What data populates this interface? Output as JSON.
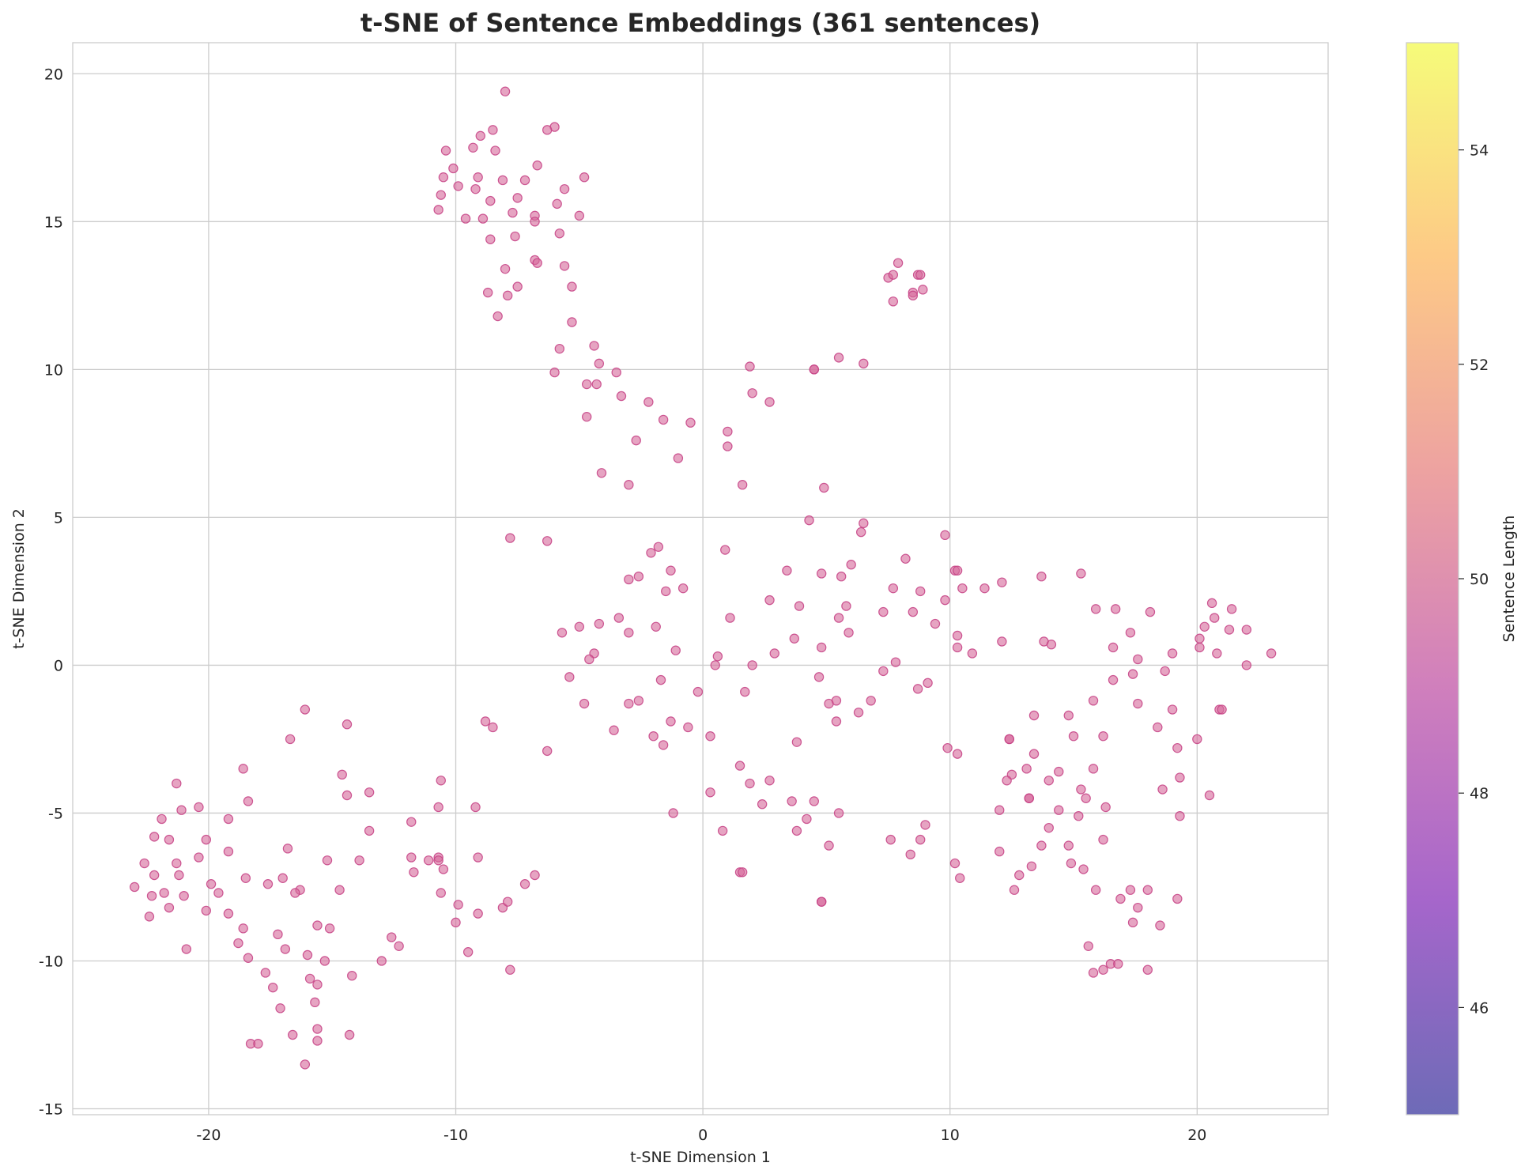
{
  "chart_data": {
    "type": "scatter",
    "title": "t-SNE of Sentence Embeddings (361 sentences)",
    "xlabel": "t-SNE Dimension 1",
    "ylabel": "t-SNE Dimension 2",
    "xlim": [
      -25.5,
      25.3
    ],
    "ylim": [
      -15.2,
      21.05
    ],
    "x_ticks": [
      -20,
      -10,
      0,
      10,
      20
    ],
    "x_tick_labels": [
      "-20",
      "-10",
      "0",
      "10",
      "20"
    ],
    "y_ticks": [
      -15,
      -10,
      -5,
      0,
      5,
      10,
      15,
      20
    ],
    "y_tick_labels": [
      "-15",
      "-10",
      "-5",
      "0",
      "5",
      "10",
      "15",
      "20"
    ],
    "grid": true,
    "point_color": "#d5679a",
    "point_edge_color": "#c63f84",
    "colorbar": {
      "label": "Sentence Length",
      "colormap": "plasma",
      "range": [
        45,
        55
      ],
      "ticks": [
        46,
        48,
        50,
        52,
        54
      ],
      "tick_labels": [
        "46",
        "48",
        "50",
        "52",
        "54"
      ],
      "colors": [
        "#0d0887",
        "#6a00a8",
        "#b12a90",
        "#e16462",
        "#fca636",
        "#f0f921"
      ]
    },
    "points": [
      [
        -8.0,
        19.4
      ],
      [
        -6.0,
        18.2
      ],
      [
        -6.3,
        18.1
      ],
      [
        -8.5,
        18.1
      ],
      [
        -9.0,
        17.9
      ],
      [
        -9.3,
        17.5
      ],
      [
        -8.4,
        17.4
      ],
      [
        -10.4,
        17.4
      ],
      [
        -6.7,
        16.9
      ],
      [
        -10.1,
        16.8
      ],
      [
        -10.5,
        16.5
      ],
      [
        -9.1,
        16.5
      ],
      [
        -4.8,
        16.5
      ],
      [
        -8.1,
        16.4
      ],
      [
        -7.2,
        16.4
      ],
      [
        -9.9,
        16.2
      ],
      [
        -9.2,
        16.1
      ],
      [
        -5.6,
        16.1
      ],
      [
        -10.6,
        15.9
      ],
      [
        -7.5,
        15.8
      ],
      [
        -8.6,
        15.7
      ],
      [
        -5.9,
        15.6
      ],
      [
        -10.7,
        15.4
      ],
      [
        -7.7,
        15.3
      ],
      [
        -6.8,
        15.2
      ],
      [
        -5.0,
        15.2
      ],
      [
        -9.6,
        15.1
      ],
      [
        -8.9,
        15.1
      ],
      [
        -6.8,
        15.0
      ],
      [
        -5.8,
        14.6
      ],
      [
        -7.6,
        14.5
      ],
      [
        -8.6,
        14.4
      ],
      [
        -6.8,
        13.7
      ],
      [
        -6.7,
        13.6
      ],
      [
        -5.6,
        13.5
      ],
      [
        -8.0,
        13.4
      ],
      [
        -7.5,
        12.8
      ],
      [
        -5.3,
        12.8
      ],
      [
        -8.7,
        12.6
      ],
      [
        -7.9,
        12.5
      ],
      [
        -8.3,
        11.8
      ],
      [
        -5.3,
        11.6
      ],
      [
        -5.8,
        10.7
      ],
      [
        -4.4,
        10.8
      ],
      [
        -4.2,
        10.2
      ],
      [
        -6.0,
        9.9
      ],
      [
        -3.5,
        9.9
      ],
      [
        -4.7,
        9.5
      ],
      [
        -4.3,
        9.5
      ],
      [
        -3.3,
        9.1
      ],
      [
        -2.2,
        8.9
      ],
      [
        -4.7,
        8.4
      ],
      [
        -1.6,
        8.3
      ],
      [
        -0.5,
        8.2
      ],
      [
        -2.7,
        7.6
      ],
      [
        -1.0,
        7.0
      ],
      [
        -4.1,
        6.5
      ],
      [
        -3.0,
        6.1
      ],
      [
        7.9,
        13.6
      ],
      [
        7.5,
        13.1
      ],
      [
        7.7,
        13.2
      ],
      [
        8.7,
        13.2
      ],
      [
        8.8,
        13.2
      ],
      [
        8.5,
        12.6
      ],
      [
        8.5,
        12.5
      ],
      [
        8.9,
        12.7
      ],
      [
        7.7,
        12.3
      ],
      [
        1.9,
        10.1
      ],
      [
        4.5,
        10.0
      ],
      [
        4.5,
        10.0
      ],
      [
        5.5,
        10.4
      ],
      [
        6.5,
        10.2
      ],
      [
        2.0,
        9.2
      ],
      [
        2.7,
        8.9
      ],
      [
        1.0,
        7.9
      ],
      [
        1.0,
        7.4
      ],
      [
        1.6,
        6.1
      ],
      [
        4.9,
        6.0
      ],
      [
        4.3,
        4.9
      ],
      [
        6.5,
        4.8
      ],
      [
        6.4,
        4.5
      ],
      [
        9.8,
        4.4
      ],
      [
        -7.8,
        4.3
      ],
      [
        -6.3,
        4.2
      ],
      [
        -1.8,
        4.0
      ],
      [
        -2.1,
        3.8
      ],
      [
        0.9,
        3.9
      ],
      [
        8.2,
        3.6
      ],
      [
        6.0,
        3.4
      ],
      [
        -1.3,
        3.2
      ],
      [
        3.4,
        3.2
      ],
      [
        10.2,
        3.2
      ],
      [
        10.3,
        3.2
      ],
      [
        4.8,
        3.1
      ],
      [
        15.3,
        3.1
      ],
      [
        13.7,
        3.0
      ],
      [
        -2.6,
        3.0
      ],
      [
        -3.0,
        2.9
      ],
      [
        5.6,
        3.0
      ],
      [
        12.1,
        2.8
      ],
      [
        -0.8,
        2.6
      ],
      [
        -1.5,
        2.5
      ],
      [
        7.7,
        2.6
      ],
      [
        8.8,
        2.5
      ],
      [
        10.5,
        2.6
      ],
      [
        11.4,
        2.6
      ],
      [
        20.6,
        2.1
      ],
      [
        2.7,
        2.2
      ],
      [
        9.8,
        2.2
      ],
      [
        3.9,
        2.0
      ],
      [
        5.8,
        2.0
      ],
      [
        16.7,
        1.9
      ],
      [
        15.9,
        1.9
      ],
      [
        18.1,
        1.8
      ],
      [
        21.4,
        1.9
      ],
      [
        7.3,
        1.8
      ],
      [
        8.5,
        1.8
      ],
      [
        -3.4,
        1.6
      ],
      [
        1.1,
        1.6
      ],
      [
        5.5,
        1.6
      ],
      [
        20.7,
        1.6
      ],
      [
        9.4,
        1.4
      ],
      [
        20.3,
        1.3
      ],
      [
        -5.0,
        1.3
      ],
      [
        -4.2,
        1.4
      ],
      [
        -1.9,
        1.3
      ],
      [
        21.3,
        1.2
      ],
      [
        22.0,
        1.2
      ],
      [
        -5.7,
        1.1
      ],
      [
        -3.0,
        1.1
      ],
      [
        5.9,
        1.1
      ],
      [
        17.3,
        1.1
      ],
      [
        3.7,
        0.9
      ],
      [
        10.3,
        1.0
      ],
      [
        20.1,
        0.9
      ],
      [
        12.1,
        0.8
      ],
      [
        13.8,
        0.8
      ],
      [
        14.1,
        0.7
      ],
      [
        16.6,
        0.6
      ],
      [
        -1.1,
        0.5
      ],
      [
        4.8,
        0.6
      ],
      [
        10.3,
        0.6
      ],
      [
        20.1,
        0.6
      ],
      [
        -4.4,
        0.4
      ],
      [
        2.9,
        0.4
      ],
      [
        10.9,
        0.4
      ],
      [
        19.0,
        0.4
      ],
      [
        20.8,
        0.4
      ],
      [
        23.0,
        0.4
      ],
      [
        -4.6,
        0.2
      ],
      [
        0.6,
        0.3
      ],
      [
        7.8,
        0.1
      ],
      [
        17.6,
        0.2
      ],
      [
        0.5,
        0.0
      ],
      [
        2.0,
        0.0
      ],
      [
        22.0,
        0.0
      ],
      [
        7.3,
        -0.2
      ],
      [
        18.7,
        -0.2
      ],
      [
        17.4,
        -0.3
      ],
      [
        -5.4,
        -0.4
      ],
      [
        -1.7,
        -0.5
      ],
      [
        4.7,
        -0.4
      ],
      [
        16.6,
        -0.5
      ],
      [
        9.1,
        -0.6
      ],
      [
        8.7,
        -0.8
      ],
      [
        -0.2,
        -0.9
      ],
      [
        1.7,
        -0.9
      ],
      [
        -4.8,
        -1.3
      ],
      [
        -2.6,
        -1.2
      ],
      [
        -3.0,
        -1.3
      ],
      [
        5.1,
        -1.3
      ],
      [
        5.4,
        -1.2
      ],
      [
        6.8,
        -1.2
      ],
      [
        15.8,
        -1.2
      ],
      [
        17.6,
        -1.3
      ],
      [
        20.9,
        -1.5
      ],
      [
        21.0,
        -1.5
      ],
      [
        19.0,
        -1.5
      ],
      [
        6.3,
        -1.6
      ],
      [
        13.4,
        -1.7
      ],
      [
        14.8,
        -1.7
      ],
      [
        5.4,
        -1.9
      ],
      [
        -1.3,
        -1.9
      ],
      [
        -8.8,
        -1.9
      ],
      [
        -8.5,
        -2.1
      ],
      [
        -0.6,
        -2.1
      ],
      [
        -3.6,
        -2.2
      ],
      [
        18.4,
        -2.1
      ],
      [
        -2.0,
        -2.4
      ],
      [
        0.3,
        -2.4
      ],
      [
        15.0,
        -2.4
      ],
      [
        16.2,
        -2.4
      ],
      [
        20.0,
        -2.5
      ],
      [
        12.4,
        -2.5
      ],
      [
        12.4,
        -2.5
      ],
      [
        -1.6,
        -2.7
      ],
      [
        3.8,
        -2.6
      ],
      [
        9.9,
        -2.8
      ],
      [
        19.2,
        -2.8
      ],
      [
        -6.3,
        -2.9
      ],
      [
        10.3,
        -3.0
      ],
      [
        13.4,
        -3.0
      ],
      [
        1.5,
        -3.4
      ],
      [
        13.1,
        -3.5
      ],
      [
        14.4,
        -3.6
      ],
      [
        15.8,
        -3.5
      ],
      [
        12.5,
        -3.7
      ],
      [
        2.7,
        -3.9
      ],
      [
        12.3,
        -3.9
      ],
      [
        14.0,
        -3.9
      ],
      [
        1.9,
        -4.0
      ],
      [
        19.3,
        -3.8
      ],
      [
        18.6,
        -4.2
      ],
      [
        15.3,
        -4.2
      ],
      [
        15.5,
        -4.5
      ],
      [
        20.5,
        -4.4
      ],
      [
        0.3,
        -4.3
      ],
      [
        13.2,
        -4.5
      ],
      [
        13.2,
        -4.5
      ],
      [
        2.4,
        -4.7
      ],
      [
        3.6,
        -4.6
      ],
      [
        4.5,
        -4.6
      ],
      [
        14.4,
        -4.9
      ],
      [
        16.3,
        -4.8
      ],
      [
        12.0,
        -4.9
      ],
      [
        -1.2,
        -5.0
      ],
      [
        5.5,
        -5.0
      ],
      [
        15.2,
        -5.1
      ],
      [
        19.3,
        -5.1
      ],
      [
        4.2,
        -5.2
      ],
      [
        9.0,
        -5.4
      ],
      [
        14.0,
        -5.5
      ],
      [
        3.8,
        -5.6
      ],
      [
        0.8,
        -5.6
      ],
      [
        7.6,
        -5.9
      ],
      [
        8.8,
        -5.9
      ],
      [
        16.2,
        -5.9
      ],
      [
        5.1,
        -6.1
      ],
      [
        13.7,
        -6.1
      ],
      [
        14.8,
        -6.1
      ],
      [
        12.0,
        -6.3
      ],
      [
        8.4,
        -6.4
      ],
      [
        14.9,
        -6.7
      ],
      [
        10.2,
        -6.7
      ],
      [
        13.3,
        -6.8
      ],
      [
        15.4,
        -6.9
      ],
      [
        1.5,
        -7.0
      ],
      [
        1.6,
        -7.0
      ],
      [
        12.8,
        -7.1
      ],
      [
        10.4,
        -7.2
      ],
      [
        12.6,
        -7.6
      ],
      [
        17.3,
        -7.6
      ],
      [
        15.9,
        -7.6
      ],
      [
        18.0,
        -7.6
      ],
      [
        16.9,
        -7.9
      ],
      [
        19.2,
        -7.9
      ],
      [
        4.8,
        -8.0
      ],
      [
        4.8,
        -8.0
      ],
      [
        17.6,
        -8.2
      ],
      [
        17.4,
        -8.7
      ],
      [
        18.5,
        -8.8
      ],
      [
        15.6,
        -9.5
      ],
      [
        16.5,
        -10.1
      ],
      [
        16.8,
        -10.1
      ],
      [
        16.2,
        -10.3
      ],
      [
        15.8,
        -10.4
      ],
      [
        18.0,
        -10.3
      ],
      [
        -21.3,
        -4.0
      ],
      [
        -18.6,
        -3.5
      ],
      [
        -21.1,
        -4.9
      ],
      [
        -21.9,
        -5.2
      ],
      [
        -20.4,
        -4.8
      ],
      [
        -18.4,
        -4.6
      ],
      [
        -19.2,
        -5.2
      ],
      [
        -22.2,
        -5.8
      ],
      [
        -21.6,
        -5.9
      ],
      [
        -20.1,
        -5.9
      ],
      [
        -19.2,
        -6.3
      ],
      [
        -22.6,
        -6.7
      ],
      [
        -21.3,
        -6.7
      ],
      [
        -20.4,
        -6.5
      ],
      [
        -21.2,
        -7.1
      ],
      [
        -22.2,
        -7.1
      ],
      [
        -18.5,
        -7.2
      ],
      [
        -19.9,
        -7.4
      ],
      [
        -23.0,
        -7.5
      ],
      [
        -21.8,
        -7.7
      ],
      [
        -19.6,
        -7.7
      ],
      [
        -22.3,
        -7.8
      ],
      [
        -21.0,
        -7.8
      ],
      [
        -21.6,
        -8.2
      ],
      [
        -20.1,
        -8.3
      ],
      [
        -19.2,
        -8.4
      ],
      [
        -22.4,
        -8.5
      ],
      [
        -18.6,
        -8.9
      ],
      [
        -18.8,
        -9.4
      ],
      [
        -20.9,
        -9.6
      ],
      [
        -18.4,
        -9.9
      ],
      [
        -16.1,
        -1.5
      ],
      [
        -16.7,
        -2.5
      ],
      [
        -14.4,
        -2.0
      ],
      [
        -14.6,
        -3.7
      ],
      [
        -14.4,
        -4.4
      ],
      [
        -13.5,
        -4.3
      ],
      [
        -13.5,
        -5.6
      ],
      [
        -16.8,
        -6.2
      ],
      [
        -15.2,
        -6.6
      ],
      [
        -13.9,
        -6.6
      ],
      [
        -17.0,
        -7.2
      ],
      [
        -17.6,
        -7.4
      ],
      [
        -16.3,
        -7.6
      ],
      [
        -16.5,
        -7.7
      ],
      [
        -14.7,
        -7.6
      ],
      [
        -15.6,
        -8.8
      ],
      [
        -15.1,
        -8.9
      ],
      [
        -17.2,
        -9.1
      ],
      [
        -16.9,
        -9.6
      ],
      [
        -16.0,
        -9.8
      ],
      [
        -15.3,
        -10.0
      ],
      [
        -17.7,
        -10.4
      ],
      [
        -14.2,
        -10.5
      ],
      [
        -15.9,
        -10.6
      ],
      [
        -15.6,
        -10.8
      ],
      [
        -17.4,
        -10.9
      ],
      [
        -15.7,
        -11.4
      ],
      [
        -17.1,
        -11.6
      ],
      [
        -15.6,
        -12.3
      ],
      [
        -16.6,
        -12.5
      ],
      [
        -14.3,
        -12.5
      ],
      [
        -15.6,
        -12.7
      ],
      [
        -18.3,
        -12.8
      ],
      [
        -18.0,
        -12.8
      ],
      [
        -16.1,
        -13.5
      ],
      [
        -10.6,
        -3.9
      ],
      [
        -11.8,
        -5.3
      ],
      [
        -10.7,
        -4.8
      ],
      [
        -9.2,
        -4.8
      ],
      [
        -11.8,
        -6.5
      ],
      [
        -10.7,
        -6.5
      ],
      [
        -11.1,
        -6.6
      ],
      [
        -10.7,
        -6.6
      ],
      [
        -9.1,
        -6.5
      ],
      [
        -10.5,
        -6.9
      ],
      [
        -11.7,
        -7.0
      ],
      [
        -10.6,
        -7.7
      ],
      [
        -9.9,
        -8.1
      ],
      [
        -8.1,
        -8.2
      ],
      [
        -7.9,
        -8.0
      ],
      [
        -7.2,
        -7.4
      ],
      [
        -6.8,
        -7.1
      ],
      [
        -9.1,
        -8.4
      ],
      [
        -10.0,
        -8.7
      ],
      [
        -12.3,
        -9.5
      ],
      [
        -12.6,
        -9.2
      ],
      [
        -9.5,
        -9.7
      ],
      [
        -13.0,
        -10.0
      ],
      [
        -7.8,
        -10.3
      ]
    ]
  }
}
